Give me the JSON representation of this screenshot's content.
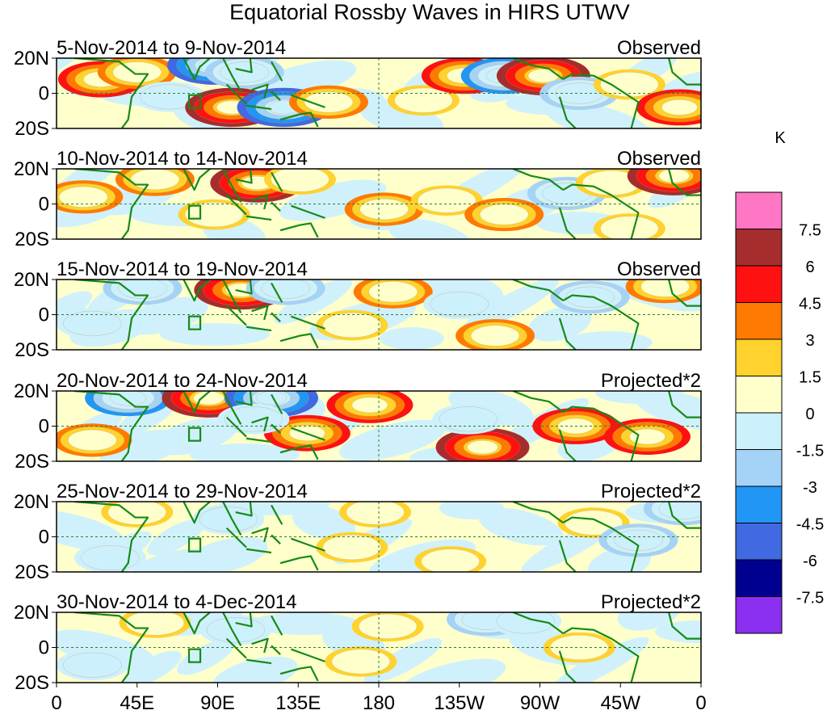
{
  "chart_data": {
    "type": "heatmap",
    "title": "Equatorial Rossby Waves in HIRS UTWV",
    "units": "K",
    "x_ticks": [
      "0",
      "45E",
      "90E",
      "135E",
      "180",
      "135W",
      "90W",
      "45W",
      "0"
    ],
    "x_range": [
      0,
      360
    ],
    "y_ticks": [
      "20N",
      "0",
      "20S"
    ],
    "y_range": [
      -20,
      20
    ],
    "colorbar": {
      "levels": [
        "7.5",
        "6",
        "4.5",
        "3",
        "1.5",
        "0",
        "-1.5",
        "-3",
        "-4.5",
        "-6",
        "-7.5"
      ],
      "colors": [
        "#ff77c4",
        "#a62d2d",
        "#ff1111",
        "#ff7a00",
        "#ffd22e",
        "#ffffcc",
        "#cdf0fd",
        "#a5d3f8",
        "#2196f5",
        "#4169e1",
        "#000090",
        "#8b2ff0"
      ]
    },
    "panels": [
      {
        "date_range": "5-Nov-2014 to 9-Nov-2014",
        "label": "Observed",
        "blobs": [
          {
            "lon": 25,
            "lat": 8,
            "value": 4.5
          },
          {
            "lon": 45,
            "lat": 12,
            "value": 3
          },
          {
            "lon": 63,
            "lat": -2,
            "value": -1.5
          },
          {
            "lon": 88,
            "lat": 16,
            "value": -6
          },
          {
            "lon": 105,
            "lat": 12,
            "value": -3
          },
          {
            "lon": 98,
            "lat": -8,
            "value": 6
          },
          {
            "lon": 127,
            "lat": -8,
            "value": -6
          },
          {
            "lon": 152,
            "lat": -5,
            "value": 3
          },
          {
            "lon": 205,
            "lat": -4,
            "value": 1.5
          },
          {
            "lon": 228,
            "lat": 10,
            "value": 4.5
          },
          {
            "lon": 250,
            "lat": 10,
            "value": -4.5
          },
          {
            "lon": 272,
            "lat": 10,
            "value": 6
          },
          {
            "lon": 292,
            "lat": 0,
            "value": -3
          },
          {
            "lon": 320,
            "lat": 5,
            "value": 1.5
          },
          {
            "lon": 348,
            "lat": -8,
            "value": 4.5
          }
        ]
      },
      {
        "date_range": "10-Nov-2014 to 14-Nov-2014",
        "label": "Observed",
        "blobs": [
          {
            "lon": 15,
            "lat": 4,
            "value": 3
          },
          {
            "lon": 55,
            "lat": 14,
            "value": 3
          },
          {
            "lon": 112,
            "lat": 12,
            "value": 6
          },
          {
            "lon": 136,
            "lat": 14,
            "value": 1.5
          },
          {
            "lon": 88,
            "lat": -6,
            "value": 1.5
          },
          {
            "lon": 183,
            "lat": -3,
            "value": 3
          },
          {
            "lon": 218,
            "lat": 2,
            "value": 1.5
          },
          {
            "lon": 250,
            "lat": -6,
            "value": 3
          },
          {
            "lon": 285,
            "lat": 6,
            "value": -3
          },
          {
            "lon": 310,
            "lat": 12,
            "value": 1.5
          },
          {
            "lon": 345,
            "lat": 16,
            "value": 6
          },
          {
            "lon": 320,
            "lat": -14,
            "value": 1.5
          }
        ]
      },
      {
        "date_range": "15-Nov-2014 to 19-Nov-2014",
        "label": "Observed",
        "blobs": [
          {
            "lon": 48,
            "lat": 15,
            "value": -3
          },
          {
            "lon": 103,
            "lat": 14,
            "value": 6
          },
          {
            "lon": 128,
            "lat": 15,
            "value": -3
          },
          {
            "lon": 188,
            "lat": 13,
            "value": 3
          },
          {
            "lon": 165,
            "lat": -6,
            "value": 1.5
          },
          {
            "lon": 245,
            "lat": -12,
            "value": 3
          },
          {
            "lon": 225,
            "lat": 6,
            "value": -1.5
          },
          {
            "lon": 298,
            "lat": 10,
            "value": -3
          },
          {
            "lon": 340,
            "lat": 16,
            "value": 3
          },
          {
            "lon": 20,
            "lat": -5,
            "value": -1.5
          }
        ]
      },
      {
        "date_range": "20-Nov-2014 to 24-Nov-2014",
        "label": "Projected*2",
        "blobs": [
          {
            "lon": 40,
            "lat": 16,
            "value": -4.5
          },
          {
            "lon": 85,
            "lat": 16,
            "value": 6
          },
          {
            "lon": 120,
            "lat": 16,
            "value": -6
          },
          {
            "lon": 175,
            "lat": 12,
            "value": 4.5
          },
          {
            "lon": 140,
            "lat": -4,
            "value": 4.5
          },
          {
            "lon": 110,
            "lat": 4,
            "value": -1.5
          },
          {
            "lon": 238,
            "lat": -12,
            "value": 6
          },
          {
            "lon": 290,
            "lat": 0,
            "value": 4.5
          },
          {
            "lon": 330,
            "lat": -6,
            "value": 4.5
          },
          {
            "lon": 230,
            "lat": 4,
            "value": -1.5
          },
          {
            "lon": 20,
            "lat": -8,
            "value": 3
          }
        ]
      },
      {
        "date_range": "25-Nov-2014 to 29-Nov-2014",
        "label": "Projected*2",
        "blobs": [
          {
            "lon": 45,
            "lat": 14,
            "value": 1.5
          },
          {
            "lon": 96,
            "lat": 10,
            "value": -1.5
          },
          {
            "lon": 178,
            "lat": 14,
            "value": 1.5
          },
          {
            "lon": 165,
            "lat": -6,
            "value": 1.5
          },
          {
            "lon": 220,
            "lat": -14,
            "value": 1.5
          },
          {
            "lon": 300,
            "lat": 8,
            "value": 1.5
          },
          {
            "lon": 325,
            "lat": -2,
            "value": -3
          },
          {
            "lon": 350,
            "lat": 16,
            "value": -3
          },
          {
            "lon": 30,
            "lat": -12,
            "value": -1.5
          }
        ]
      },
      {
        "date_range": "30-Nov-2014 to 4-Dec-2014",
        "label": "Projected*2",
        "blobs": [
          {
            "lon": 55,
            "lat": 14,
            "value": 1.5
          },
          {
            "lon": 100,
            "lat": 10,
            "value": -1.5
          },
          {
            "lon": 185,
            "lat": 12,
            "value": 1.5
          },
          {
            "lon": 240,
            "lat": 16,
            "value": -3
          },
          {
            "lon": 262,
            "lat": 15,
            "value": -1.5
          },
          {
            "lon": 292,
            "lat": 0,
            "value": 1.5
          },
          {
            "lon": 170,
            "lat": -8,
            "value": 1.5
          },
          {
            "lon": 20,
            "lat": -10,
            "value": -1.5
          }
        ]
      }
    ]
  }
}
